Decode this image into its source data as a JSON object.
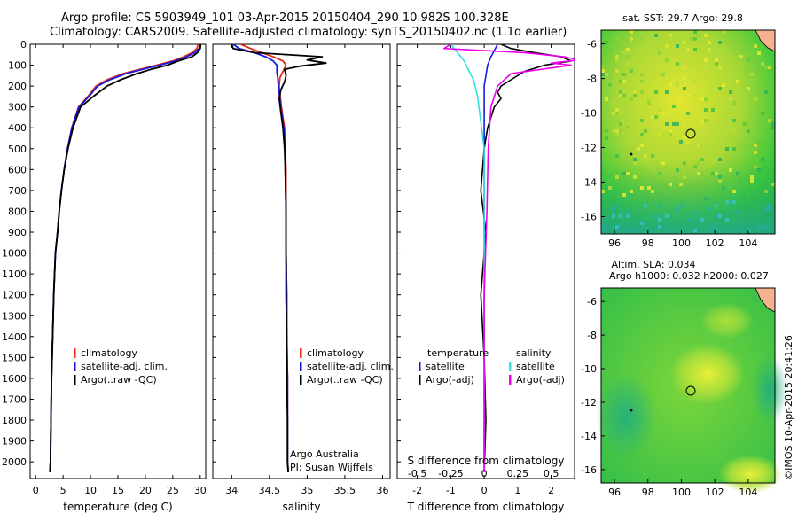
{
  "header": {
    "line1": "Argo profile: CS 5903949_101 03-Apr-2015 20150404_290 10.982S 100.328E",
    "line2": "Climatology: CARS2009. Satellite-adjusted climatology: synTS_20150402.nc (1.1d earlier)"
  },
  "colors": {
    "climatology": "#e8281c",
    "satellite": "#1a1adc",
    "argo": "#000000",
    "salinity_sat": "#33e0e0",
    "salinity_argo": "#ee00ee"
  },
  "chart_data": [
    {
      "type": "line",
      "name": "temperature-profile",
      "xlabel": "temperature (deg C)",
      "ylabel": "",
      "xlim": [
        -1,
        31
      ],
      "ylim": [
        2080,
        0
      ],
      "xticks": [
        0,
        5,
        10,
        15,
        20,
        25,
        30
      ],
      "yticks": [
        0,
        100,
        200,
        300,
        400,
        500,
        600,
        700,
        800,
        900,
        1000,
        1100,
        1200,
        1300,
        1400,
        1500,
        1600,
        1700,
        1800,
        1900,
        2000
      ],
      "legend": [
        "climatology",
        "satellite-adj. clim.",
        "Argo(..raw -QC)"
      ],
      "series": [
        {
          "name": "climatology",
          "x": [
            29.6,
            29.4,
            28.5,
            27,
            25,
            22,
            19,
            16,
            13,
            11,
            9.5,
            7.8,
            6.6,
            5.8,
            5.2,
            4.7,
            4.3,
            4,
            3.6,
            3.3,
            3.1,
            2.9,
            2.8,
            2.7,
            2.6
          ],
          "y": [
            0,
            20,
            40,
            60,
            80,
            100,
            120,
            140,
            170,
            200,
            250,
            300,
            400,
            500,
            600,
            700,
            800,
            900,
            1000,
            1200,
            1400,
            1600,
            1800,
            2000,
            2050
          ]
        },
        {
          "name": "satellite-adj. clim.",
          "x": [
            30,
            29.8,
            29,
            27.5,
            25.5,
            22.5,
            19.5,
            16.5,
            13.5,
            11.3,
            9.7,
            7.9,
            6.6,
            5.8,
            5.2,
            4.7,
            4.3,
            4,
            3.6,
            3.3,
            3.1,
            2.9,
            2.8,
            2.7,
            2.6
          ],
          "y": [
            0,
            20,
            40,
            60,
            80,
            100,
            120,
            140,
            170,
            200,
            250,
            300,
            400,
            500,
            600,
            700,
            800,
            900,
            1000,
            1200,
            1400,
            1600,
            1800,
            2000,
            2050
          ]
        },
        {
          "name": "Argo(..raw -QC)",
          "x": [
            30.1,
            30,
            29.5,
            28.5,
            26,
            24,
            21,
            18.5,
            15.5,
            13,
            10.5,
            8.2,
            6.8,
            5.9,
            5.2,
            4.7,
            4.3,
            4,
            3.6,
            3.3,
            3.1,
            2.9,
            2.8,
            2.7,
            2.6
          ],
          "y": [
            0,
            20,
            40,
            60,
            80,
            100,
            120,
            140,
            170,
            200,
            250,
            300,
            400,
            500,
            600,
            700,
            800,
            900,
            1000,
            1200,
            1400,
            1600,
            1800,
            2000,
            2050
          ]
        }
      ]
    },
    {
      "type": "line",
      "name": "salinity-profile",
      "xlabel": "salinity",
      "xlim": [
        33.75,
        36.1
      ],
      "ylim": [
        2080,
        0
      ],
      "xticks": [
        34,
        34.5,
        35,
        35.5,
        36
      ],
      "legend": [
        "climatology",
        "satellite-adj. clim.",
        "Argo(..raw -QC)"
      ],
      "annotations": [
        "Argo Australia",
        "PI: Susan Wijffels"
      ],
      "series": [
        {
          "name": "climatology",
          "x": [
            34.12,
            34.25,
            34.4,
            34.55,
            34.68,
            34.72,
            34.68,
            34.64,
            34.63,
            34.66,
            34.7,
            34.71,
            34.72,
            34.72,
            34.72,
            34.73,
            34.73,
            34.74,
            34.74,
            34.74,
            34.75
          ],
          "y": [
            0,
            20,
            40,
            60,
            80,
            100,
            130,
            160,
            200,
            300,
            400,
            500,
            600,
            800,
            1000,
            1200,
            1400,
            1600,
            1800,
            2000,
            2050
          ]
        },
        {
          "name": "satellite-adj. clim.",
          "x": [
            34.02,
            34.1,
            34.3,
            34.45,
            34.55,
            34.6,
            34.6,
            34.61,
            34.62,
            34.65,
            34.69,
            34.71,
            34.71,
            34.72,
            34.72,
            34.73,
            34.73,
            34.74,
            34.74,
            34.74,
            34.75
          ],
          "y": [
            0,
            20,
            40,
            60,
            80,
            100,
            130,
            160,
            200,
            300,
            400,
            500,
            600,
            800,
            1000,
            1200,
            1400,
            1600,
            1800,
            2000,
            2050
          ]
        },
        {
          "name": "Argo(..raw -QC)",
          "x": [
            34.0,
            34.02,
            34.3,
            35.2,
            35.0,
            35.25,
            34.9,
            34.7,
            34.72,
            34.7,
            34.65,
            34.63,
            34.65,
            34.68,
            34.7,
            34.71,
            34.72,
            34.72,
            34.72,
            34.72,
            34.73,
            34.73,
            34.74,
            34.74,
            34.74,
            34.75
          ],
          "y": [
            0,
            20,
            40,
            60,
            75,
            90,
            105,
            120,
            150,
            180,
            220,
            260,
            320,
            400,
            500,
            600,
            800,
            900,
            1000,
            1200,
            1400,
            1600,
            1800,
            1900,
            2000,
            2050
          ]
        }
      ]
    },
    {
      "type": "line",
      "name": "difference-profile",
      "xlabel": "T difference from climatology",
      "top_xlabel": "S difference from climatology",
      "xlim": [
        -2.6,
        2.7
      ],
      "ylim": [
        2080,
        0
      ],
      "xticks": [
        -2,
        -1,
        0,
        1,
        2
      ],
      "top_xticks": [
        -0.5,
        -0.25,
        0,
        0.25,
        0.5
      ],
      "legend_headers": [
        "temperature",
        "salinity"
      ],
      "legend": [
        "satellite",
        "Argo(-adj)",
        "satellite",
        "Argo(-adj)"
      ],
      "series": [
        {
          "name": "T satellite",
          "x": [
            0.4,
            0.3,
            0.2,
            0.1,
            0.05,
            0,
            0,
            0,
            0,
            0
          ],
          "y": [
            0,
            30,
            60,
            100,
            150,
            200,
            400,
            800,
            1400,
            2050
          ]
        },
        {
          "name": "T Argo(-adj)",
          "x": [
            0.5,
            0.8,
            1.5,
            2.3,
            2.6,
            1.8,
            1.2,
            0.8,
            0.5,
            0.4,
            0.5,
            0.3,
            0.2,
            0.1,
            0,
            -0.1,
            0.05,
            -0.1,
            0,
            0.05,
            0
          ],
          "y": [
            0,
            20,
            40,
            60,
            80,
            100,
            130,
            170,
            200,
            230,
            260,
            300,
            350,
            400,
            500,
            700,
            900,
            1200,
            1500,
            1800,
            2050
          ]
        },
        {
          "name": "S satellite",
          "x": [
            -0.25,
            -0.2,
            -0.15,
            -0.12,
            -0.08,
            -0.05,
            -0.03,
            0,
            0,
            0,
            0
          ],
          "y": [
            0,
            40,
            80,
            120,
            170,
            250,
            350,
            500,
            900,
            1500,
            2050
          ]
        },
        {
          "name": "S Argo(-adj)",
          "x": [
            -0.25,
            -0.3,
            0.3,
            0.6,
            0.7,
            0.5,
            0.65,
            0.2,
            0.1,
            0.05,
            0.03,
            0.02,
            0,
            0
          ],
          "y": [
            0,
            20,
            40,
            60,
            75,
            90,
            100,
            140,
            200,
            300,
            500,
            800,
            1200,
            2050
          ]
        }
      ]
    }
  ],
  "maps": {
    "sst": {
      "title": "sat. SST: 29.7 Argo: 29.8",
      "xticks": [
        "96",
        "98",
        "100",
        "102",
        "104"
      ],
      "yticks": [
        "-6",
        "-8",
        "-10",
        "-12",
        "-14",
        "-16"
      ]
    },
    "sla": {
      "title1": "Altim. SLA: 0.034",
      "title2": "Argo h1000: 0.032 h2000: 0.027",
      "xticks": [
        "96",
        "98",
        "100",
        "102",
        "104"
      ],
      "yticks": [
        "-6",
        "-8",
        "-10",
        "-12",
        "-14",
        "-16"
      ]
    }
  },
  "credit": "©IMOS 10-Apr-2015 20:41:26"
}
